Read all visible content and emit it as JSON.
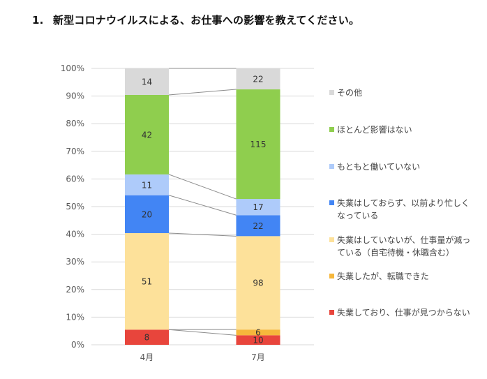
{
  "title": {
    "number": "1.",
    "text": "新型コロナウイルスによる、お仕事への影響を教えてください。"
  },
  "chart_data": {
    "type": "bar",
    "stacking": "percent",
    "title": "新型コロナウイルスによる、お仕事への影響を教えてください。",
    "xlabel": "",
    "ylabel": "",
    "ylim": [
      0,
      100
    ],
    "yticks": [
      "0%",
      "10%",
      "20%",
      "30%",
      "40%",
      "50%",
      "60%",
      "70%",
      "80%",
      "90%",
      "100%"
    ],
    "categories": [
      "4月",
      "7月"
    ],
    "grid": true,
    "legend_position": "right",
    "series_connector_lines": true,
    "series": [
      {
        "name": "失業しており、仕事が見つからない",
        "color": "#e8453c",
        "values": [
          8,
          10
        ]
      },
      {
        "name": "失業したが、転職できた",
        "color": "#f6b73c",
        "values": [
          0,
          6
        ]
      },
      {
        "name": "失業はしていないが、仕事量が減っている（自宅待機・休職含む）",
        "color": "#fde19a",
        "values": [
          51,
          98
        ]
      },
      {
        "name": "失業はしておらず、以前より忙しくなっている",
        "color": "#4285f4",
        "values": [
          20,
          22
        ]
      },
      {
        "name": "もともと働いていない",
        "color": "#aecbfa",
        "values": [
          11,
          17
        ]
      },
      {
        "name": "ほとんど影響はない",
        "color": "#8fce4e",
        "values": [
          42,
          115
        ]
      },
      {
        "name": "その他",
        "color": "#d9d9d9",
        "values": [
          14,
          22
        ]
      }
    ]
  },
  "legend": [
    {
      "label": "その他",
      "color": "#d9d9d9"
    },
    {
      "label": "ほとんど影響はない",
      "color": "#8fce4e"
    },
    {
      "label": "もともと働いていない",
      "color": "#aecbfa"
    },
    {
      "label": "失業はしておらず、以前より忙しくなっている",
      "color": "#4285f4"
    },
    {
      "label": "失業はしていないが、仕事量が減っている（自宅待機・休職含む）",
      "color": "#fde19a"
    },
    {
      "label": "失業したが、転職できた",
      "color": "#f6b73c"
    },
    {
      "label": "失業しており、仕事が見つからない",
      "color": "#e8453c"
    }
  ]
}
